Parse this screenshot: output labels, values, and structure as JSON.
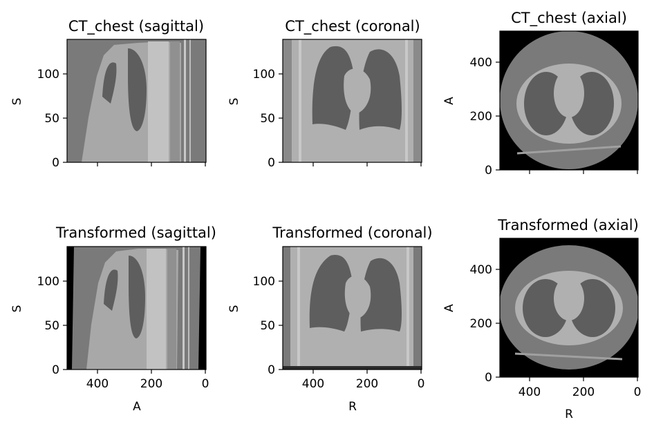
{
  "figure": {
    "panels": [
      {
        "title": "CT_chest (sagittal)",
        "xlabel": "",
        "ylabel": "S",
        "view": "sagittal",
        "source": "original",
        "yticks": [
          "0",
          "50",
          "100"
        ],
        "xticks": []
      },
      {
        "title": "CT_chest (coronal)",
        "xlabel": "",
        "ylabel": "S",
        "view": "coronal",
        "source": "original",
        "yticks": [
          "0",
          "50",
          "100"
        ],
        "xticks": []
      },
      {
        "title": "CT_chest (axial)",
        "xlabel": "",
        "ylabel": "A",
        "view": "axial",
        "source": "original",
        "yticks": [
          "0",
          "200",
          "400"
        ],
        "xticks": []
      },
      {
        "title": "Transformed (sagittal)",
        "xlabel": "A",
        "ylabel": "S",
        "view": "sagittal",
        "source": "transformed",
        "yticks": [
          "0",
          "50",
          "100"
        ],
        "xticks": [
          "400",
          "200",
          "0"
        ]
      },
      {
        "title": "Transformed (coronal)",
        "xlabel": "R",
        "ylabel": "S",
        "view": "coronal",
        "source": "transformed",
        "yticks": [
          "0",
          "50",
          "100"
        ],
        "xticks": [
          "400",
          "200",
          "0"
        ]
      },
      {
        "title": "Transformed (axial)",
        "xlabel": "R",
        "ylabel": "A",
        "view": "axial",
        "source": "transformed",
        "yticks": [
          "0",
          "200",
          "400"
        ],
        "xticks": [
          "400",
          "200",
          "0"
        ]
      }
    ],
    "colors": {
      "soft_tissue": "#a9a9a9",
      "lung": "#5e5e5e",
      "background_ct": "#7a7a7a",
      "air": "#000000"
    }
  }
}
